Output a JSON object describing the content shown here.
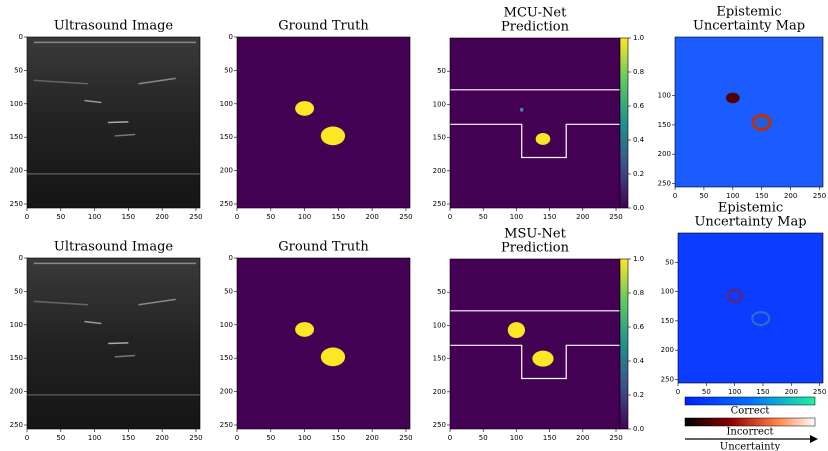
{
  "chart_data": [
    {
      "type": "ultrasound",
      "title": [
        "Ultrasound Image"
      ],
      "xlim": [
        0,
        256
      ],
      "ylim": [
        256,
        0
      ],
      "xticks": [
        0,
        50,
        100,
        150,
        200,
        250
      ],
      "yticks": [
        0,
        50,
        100,
        150,
        200,
        250
      ]
    },
    {
      "type": "mask",
      "title": [
        "Ground Truth"
      ],
      "xlim": [
        0,
        256
      ],
      "ylim": [
        256,
        0
      ],
      "xticks": [
        0,
        50,
        100,
        150,
        200,
        250
      ],
      "yticks": [
        0,
        50,
        100,
        150,
        200,
        250
      ]
    },
    {
      "type": "prediction1",
      "title": [
        "MCU-Net",
        "Prediction"
      ],
      "xlim": [
        0,
        256
      ],
      "ylim": [
        256,
        0
      ],
      "xticks": [
        0,
        50,
        100,
        150,
        200,
        250
      ],
      "yticks": [
        50,
        100,
        150,
        200,
        250
      ]
    },
    {
      "type": "uncertainty1",
      "title": [
        "Epistemic",
        "Uncertainty Map"
      ],
      "xlim": [
        0,
        256
      ],
      "ylim": [
        256,
        0
      ],
      "xticks": [
        0,
        50,
        100,
        150,
        200,
        250
      ],
      "yticks": [
        100,
        150,
        200,
        250
      ]
    },
    {
      "type": "ultrasound",
      "title": [
        "Ultrasound Image"
      ],
      "xlim": [
        0,
        256
      ],
      "ylim": [
        256,
        0
      ],
      "xticks": [
        0,
        50,
        100,
        150,
        200,
        250
      ],
      "yticks": [
        0,
        50,
        100,
        150,
        200,
        250
      ]
    },
    {
      "type": "mask",
      "title": [
        "Ground Truth"
      ],
      "xlim": [
        0,
        256
      ],
      "ylim": [
        256,
        0
      ],
      "xticks": [
        0,
        50,
        100,
        150,
        200,
        250
      ],
      "yticks": [
        0,
        50,
        100,
        150,
        200,
        250
      ]
    },
    {
      "type": "prediction2",
      "title": [
        "MSU-Net",
        "Prediction"
      ],
      "xlim": [
        0,
        256
      ],
      "ylim": [
        256,
        0
      ],
      "xticks": [
        0,
        50,
        100,
        150,
        200,
        250
      ],
      "yticks": [
        50,
        100,
        150,
        200,
        250
      ]
    },
    {
      "type": "uncertainty2",
      "title": [
        "Epistemic",
        "Uncertainty Map"
      ],
      "xlim": [
        0,
        256
      ],
      "ylim": [
        256,
        0
      ],
      "xticks": [
        0,
        50,
        100,
        150,
        200,
        250
      ],
      "yticks": [
        50,
        100,
        150,
        200,
        250
      ]
    },
    {
      "type": "colorbar",
      "ylim": [
        0,
        1
      ],
      "yticks": [
        {
          "value": 0,
          "label": "0.0"
        },
        0.2,
        0.4,
        0.6,
        0.8,
        {
          "value": 1,
          "label": "1.0"
        }
      ]
    },
    {
      "type": "colorbar",
      "ylim": [
        0,
        1
      ],
      "yticks": [
        {
          "value": 0,
          "label": "0.0"
        },
        0.2,
        0.4,
        0.6,
        0.8,
        {
          "value": 1,
          "label": "1.0"
        }
      ]
    },
    {
      "type": "legend",
      "entries": [
        "Correct",
        "Incorrect"
      ],
      "arrow_label": "Uncertainty"
    }
  ]
}
